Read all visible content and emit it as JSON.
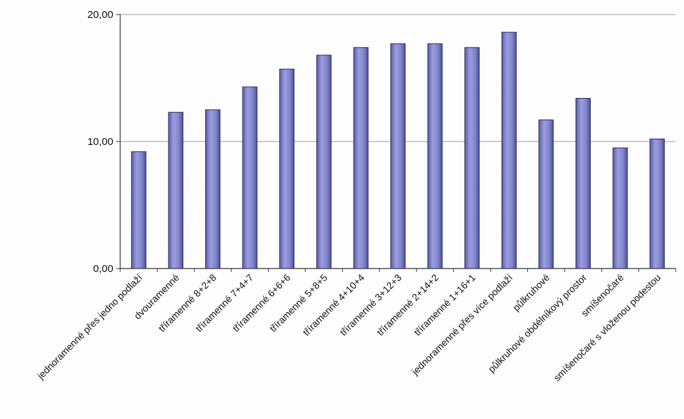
{
  "chart_data": {
    "type": "bar",
    "title": "",
    "xlabel": "",
    "ylabel": "",
    "ylim": [
      0,
      20
    ],
    "yticks": [
      "0,00",
      "10,00",
      "20,00"
    ],
    "grid": true,
    "legend": "none",
    "bar_color": "#8c8fd0",
    "categories": [
      "jednoramenné přes jedno podlaží",
      "dvouramenné",
      "tříramenné 8+2+8",
      "tříramenné 7+4+7",
      "tříramenné 6+6+6",
      "tříramenné 5+8+5",
      "tříramenné 4+10+4",
      "tříramenné 3+12+3",
      "tříramenné 2+14+2",
      "tříramenné 1+16+1",
      "jednoramenné přes více podlaží",
      "půlkruhové",
      "půlkruhové obdélníkový prostor",
      "smíšenočaré",
      "smíšenočaré s vloženou podestou"
    ],
    "values": [
      9.2,
      12.3,
      12.5,
      14.3,
      15.7,
      16.8,
      17.4,
      17.7,
      17.7,
      17.4,
      18.6,
      11.7,
      13.4,
      9.5,
      10.2
    ]
  }
}
